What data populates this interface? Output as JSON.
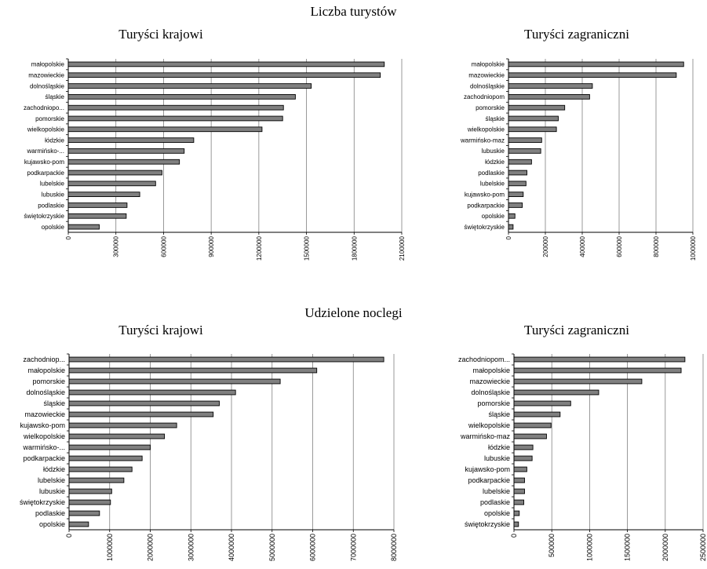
{
  "sections": [
    {
      "title": "Liczba turystów"
    },
    {
      "title": "Udzielone noclegi"
    }
  ],
  "colors": {
    "bar_fill": "#808080",
    "bar_stroke": "#000000",
    "grid": "#808080",
    "axis": "#000000"
  },
  "chart_data": [
    {
      "type": "bar",
      "orientation": "horizontal",
      "section": "Liczba turystów",
      "title": "Turyści krajowi",
      "categories": [
        "małopolskie",
        "mazowieckie",
        "dolnośląskie",
        "śląskie",
        "zachodniopo...",
        "pomorskie",
        "wielkopolskie",
        "łódzkie",
        "warmińsko-...",
        "kujawsko-pom",
        "podkarpackie",
        "lubelskie",
        "lubuskie",
        "podlaskie",
        "świętokrzyskie",
        "opolskie"
      ],
      "values": [
        1990000,
        1965000,
        1530000,
        1430000,
        1355000,
        1350000,
        1220000,
        790000,
        730000,
        700000,
        590000,
        550000,
        450000,
        370000,
        365000,
        195000
      ],
      "xlim": [
        0,
        2100000
      ],
      "xticks": [
        "0",
        "300000",
        "600000",
        "900000",
        "1200000",
        "1500000",
        "1800000",
        "2100000"
      ],
      "grid": true,
      "legend": "none"
    },
    {
      "type": "bar",
      "orientation": "horizontal",
      "section": "Liczba turystów",
      "title": "Turyści zagraniczni",
      "categories": [
        "małopolskie",
        "mazowieckie",
        "dolnośląskie",
        "zachodniopom",
        "pomorskie",
        "śląskie",
        "wielkopolskie",
        "warmińsko-maz",
        "lubuskie",
        "łódzkie",
        "podlaskie",
        "lubelskie",
        "kujawsko-pom",
        "podkarpackie",
        "opolskie",
        "świętokrzyskie"
      ],
      "values": [
        950000,
        910000,
        455000,
        440000,
        305000,
        270000,
        260000,
        180000,
        175000,
        125000,
        100000,
        95000,
        80000,
        75000,
        35000,
        25000
      ],
      "xlim": [
        0,
        1000000
      ],
      "xticks": [
        "0",
        "200000",
        "400000",
        "600000",
        "800000",
        "1000000"
      ],
      "grid": true,
      "legend": "none"
    },
    {
      "type": "bar",
      "orientation": "horizontal",
      "section": "Udzielone noclegi",
      "title": "Turyści krajowi",
      "categories": [
        "zachodniop...",
        "małopolskie",
        "pomorskie",
        "dolnośląskie",
        "śląskie",
        "mazowieckie",
        "kujawsko-pom",
        "wielkopolskie",
        "warmińsko-...",
        "podkarpackie",
        "łódzkie",
        "lubelskie",
        "lubuskie",
        "świętokrzyskie",
        "podlaskie",
        "opolskie"
      ],
      "values": [
        7750000,
        6100000,
        5200000,
        4100000,
        3700000,
        3550000,
        2650000,
        2350000,
        2000000,
        1800000,
        1550000,
        1350000,
        1050000,
        1020000,
        750000,
        480000
      ],
      "xlim": [
        0,
        8000000
      ],
      "xticks": [
        "0",
        "1000000",
        "2000000",
        "3000000",
        "4000000",
        "5000000",
        "6000000",
        "7000000",
        "8000000"
      ],
      "grid": true,
      "legend": "none"
    },
    {
      "type": "bar",
      "orientation": "horizontal",
      "section": "Udzielone noclegi",
      "title": "Turyści zagraniczni",
      "categories": [
        "zachodniopom...",
        "małopolskie",
        "mazowieckie",
        "dolnośląskie",
        "pomorskie",
        "śląskie",
        "wielkopolskie",
        "warmińsko-maz",
        "łódzkie",
        "lubuskie",
        "kujawsko-pom",
        "podkarpackie",
        "lubelskie",
        "podlaskie",
        "opolskie",
        "świętokrzyskie"
      ],
      "values": [
        2260000,
        2210000,
        1690000,
        1120000,
        750000,
        610000,
        490000,
        430000,
        250000,
        240000,
        170000,
        140000,
        140000,
        130000,
        70000,
        60000
      ],
      "xlim": [
        0,
        2500000
      ],
      "xticks": [
        "0",
        "500000",
        "1000000",
        "1500000",
        "2000000",
        "2500000"
      ],
      "grid": true,
      "legend": "none"
    }
  ]
}
